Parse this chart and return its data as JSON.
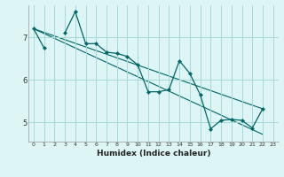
{
  "xlabel": "Humidex (Indice chaleur)",
  "bg_color": "#ddf5f5",
  "grid_color": "#a8d8d8",
  "line_color": "#006666",
  "xlim": [
    -0.5,
    23.5
  ],
  "ylim": [
    4.55,
    7.75
  ],
  "yticks": [
    5,
    6,
    7
  ],
  "xticks": [
    0,
    1,
    2,
    3,
    4,
    5,
    6,
    7,
    8,
    9,
    10,
    11,
    12,
    13,
    14,
    15,
    16,
    17,
    18,
    19,
    20,
    21,
    22,
    23
  ],
  "series1": [
    7.2,
    6.75,
    null,
    7.1,
    7.6,
    6.85,
    6.85,
    6.65,
    6.62,
    6.55,
    6.35,
    5.72,
    5.72,
    5.77,
    6.45,
    6.15,
    5.65,
    4.85,
    5.05,
    5.07,
    5.05,
    4.87,
    5.32,
    null
  ],
  "line1_x": [
    0,
    22
  ],
  "line1_y": [
    7.2,
    5.32
  ],
  "line2_x": [
    0,
    22
  ],
  "line2_y": [
    7.2,
    4.72
  ]
}
